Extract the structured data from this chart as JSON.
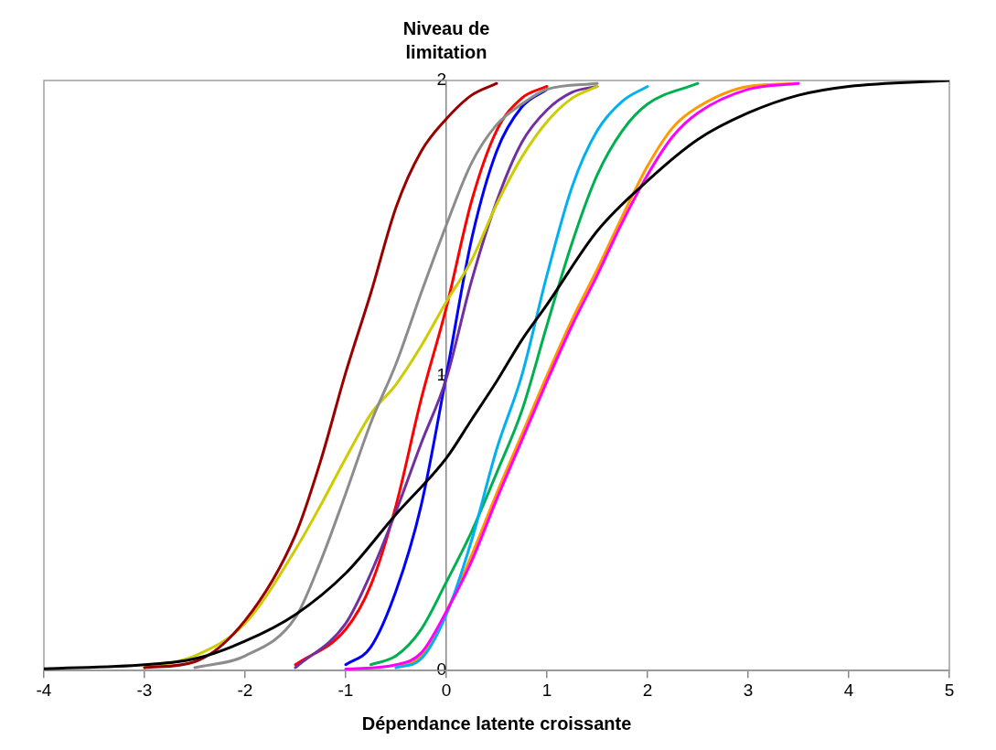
{
  "chart_data": {
    "type": "line",
    "xlabel": "Dépendance latente croissante",
    "ylabel": "Niveau de limitation",
    "xlim": [
      -4,
      5
    ],
    "xticks": [
      -4,
      -3,
      -2,
      -1,
      0,
      1,
      2,
      3,
      4,
      5
    ],
    "ylim": [
      0,
      2
    ],
    "yticks": [
      0,
      1,
      2
    ],
    "grid": false,
    "legend": false,
    "marker": "none",
    "line_style": "solid",
    "series": [
      {
        "color": "#000000",
        "x": [
          -4,
          -3,
          -2.5,
          -2,
          -1.5,
          -1,
          -0.5,
          0,
          0.25,
          0.5,
          0.75,
          1,
          1.5,
          2,
          2.5,
          3,
          3.5,
          4,
          5
        ],
        "values": [
          0.006,
          0.02,
          0.04,
          0.1,
          0.19,
          0.33,
          0.53,
          0.72,
          0.85,
          0.98,
          1.12,
          1.24,
          1.49,
          1.66,
          1.8,
          1.89,
          1.95,
          1.98,
          2
        ]
      },
      {
        "color": "#ff00ff",
        "x": [
          -1,
          -0.5,
          -0.25,
          0,
          0.25,
          0.5,
          0.75,
          1,
          1.25,
          1.5,
          1.75,
          2,
          2.25,
          2.5,
          3,
          3.5
        ],
        "values": [
          0.005,
          0.02,
          0.06,
          0.2,
          0.37,
          0.58,
          0.78,
          0.98,
          1.17,
          1.34,
          1.52,
          1.68,
          1.81,
          1.89,
          1.97,
          1.99
        ]
      },
      {
        "color": "#990000",
        "x": [
          -3,
          -2.5,
          -2,
          -1.5,
          -1.25,
          -1,
          -0.75,
          -0.5,
          -0.25,
          0,
          0.25,
          0.5
        ],
        "values": [
          0.01,
          0.03,
          0.17,
          0.46,
          0.71,
          1.01,
          1.28,
          1.57,
          1.76,
          1.87,
          1.95,
          1.99
        ]
      },
      {
        "color": "#8c8c8c",
        "x": [
          -2.5,
          -2,
          -1.5,
          -1.25,
          -1,
          -0.75,
          -0.5,
          -0.25,
          0,
          0.25,
          0.5,
          0.75,
          1,
          1.5
        ],
        "values": [
          0.01,
          0.05,
          0.18,
          0.37,
          0.6,
          0.84,
          1.04,
          1.28,
          1.51,
          1.72,
          1.85,
          1.92,
          1.97,
          1.99
        ]
      },
      {
        "color": "#cccc00",
        "x": [
          -3,
          -2.5,
          -2,
          -1.5,
          -1.25,
          -1,
          -0.75,
          -0.5,
          -0.25,
          0,
          0.25,
          0.5,
          0.75,
          1,
          1.25,
          1.5
        ],
        "values": [
          0.01,
          0.05,
          0.16,
          0.41,
          0.56,
          0.72,
          0.87,
          0.97,
          1.1,
          1.25,
          1.39,
          1.58,
          1.74,
          1.86,
          1.94,
          1.98
        ]
      },
      {
        "color": "#7030a0",
        "x": [
          -1.5,
          -1,
          -0.75,
          -0.5,
          -0.25,
          0,
          0.25,
          0.5,
          0.75,
          1,
          1.25,
          1.5
        ],
        "values": [
          0.01,
          0.16,
          0.33,
          0.54,
          0.77,
          0.99,
          1.32,
          1.59,
          1.79,
          1.9,
          1.96,
          1.98
        ]
      },
      {
        "color": "#ff0000",
        "x": [
          -1.5,
          -1,
          -0.75,
          -0.5,
          -0.25,
          0,
          0.25,
          0.5,
          0.75,
          1
        ],
        "values": [
          0.02,
          0.14,
          0.29,
          0.56,
          0.92,
          1.23,
          1.59,
          1.83,
          1.94,
          1.98
        ]
      },
      {
        "color": "#0000ff",
        "x": [
          -1,
          -0.75,
          -0.5,
          -0.25,
          0,
          0.25,
          0.5,
          0.75,
          1
        ],
        "values": [
          0.02,
          0.08,
          0.27,
          0.56,
          1,
          1.46,
          1.76,
          1.91,
          1.97
        ]
      },
      {
        "color": "#00b0f0",
        "x": [
          -0.5,
          -0.25,
          0,
          0.25,
          0.5,
          0.75,
          1,
          1.25,
          1.5,
          1.75,
          2
        ],
        "values": [
          0.01,
          0.04,
          0.19,
          0.44,
          0.75,
          1,
          1.34,
          1.64,
          1.83,
          1.93,
          1.98
        ]
      },
      {
        "color": "#00b050",
        "x": [
          -0.75,
          -0.5,
          -0.25,
          0,
          0.25,
          0.5,
          0.75,
          1,
          1.25,
          1.5,
          1.75,
          2,
          2.5
        ],
        "values": [
          0.02,
          0.05,
          0.14,
          0.3,
          0.47,
          0.67,
          0.88,
          1.17,
          1.45,
          1.68,
          1.83,
          1.92,
          1.99
        ]
      },
      {
        "color": "#ff9900",
        "x": [
          -0.5,
          -0.25,
          0,
          0.25,
          0.5,
          0.75,
          1,
          1.25,
          1.5,
          1.75,
          2,
          2.25,
          2.5,
          3,
          3.5
        ],
        "values": [
          0.01,
          0.05,
          0.2,
          0.39,
          0.6,
          0.8,
          1,
          1.19,
          1.36,
          1.54,
          1.71,
          1.84,
          1.91,
          1.98,
          1.99
        ]
      }
    ]
  }
}
